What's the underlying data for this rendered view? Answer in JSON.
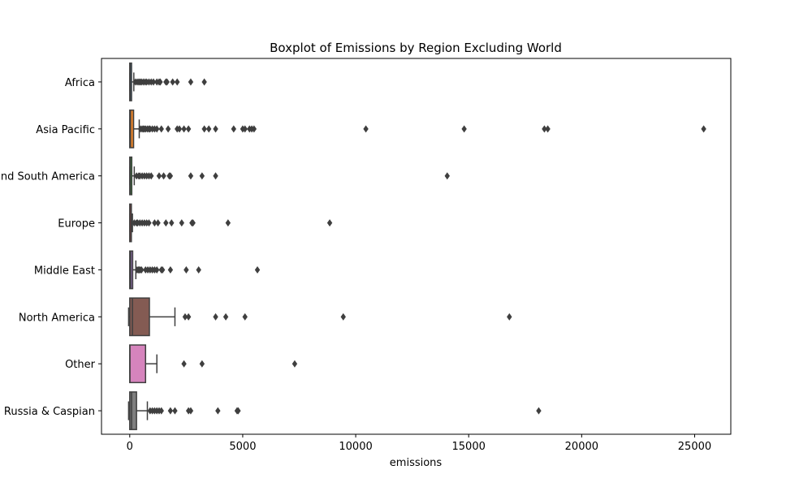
{
  "chart_data": {
    "type": "boxplot",
    "title": "Boxplot of Emissions by Region Excluding World",
    "xlabel": "emissions",
    "ylabel": "",
    "xlim": [
      -1250,
      26600
    ],
    "xticks": [
      0,
      5000,
      10000,
      15000,
      20000,
      25000
    ],
    "grid": false,
    "categories": [
      "Africa",
      "Asia Pacific",
      "Central and South America",
      "Europe",
      "Middle East",
      "North America",
      "Other",
      "Russia & Caspian"
    ],
    "boxes": [
      {
        "category": "Africa",
        "color": "#3274a1",
        "whisker_low": 0,
        "q1": 0,
        "median": 20,
        "q3": 80,
        "whisker_high": 180,
        "outliers": [
          250,
          330,
          400,
          460,
          520,
          600,
          680,
          750,
          850,
          950,
          1050,
          1200,
          1300,
          1350,
          1600,
          1650,
          1900,
          2100,
          2700,
          3300
        ]
      },
      {
        "category": "Asia Pacific",
        "color": "#e1812c",
        "whisker_low": 0,
        "q1": 0,
        "median": 30,
        "q3": 170,
        "whisker_high": 420,
        "outliers": [
          480,
          550,
          600,
          650,
          700,
          780,
          850,
          900,
          1000,
          1100,
          1200,
          1400,
          1700,
          2100,
          2200,
          2400,
          2600,
          3300,
          3500,
          3800,
          4600,
          5000,
          5100,
          5300,
          5400,
          5500,
          10450,
          14800,
          18350,
          18500,
          25400
        ]
      },
      {
        "category": "Central and South America",
        "color": "#3a923a",
        "whisker_low": 0,
        "q1": 0,
        "median": 20,
        "q3": 90,
        "whisker_high": 200,
        "outliers": [
          300,
          400,
          450,
          550,
          650,
          750,
          850,
          950,
          1300,
          1500,
          1750,
          1800,
          2700,
          3200,
          3800,
          14050
        ]
      },
      {
        "category": "Europe",
        "color": "#c03d3e",
        "whisker_low": 0,
        "q1": 0,
        "median": 10,
        "q3": 50,
        "whisker_high": 120,
        "outliers": [
          200,
          300,
          350,
          450,
          550,
          650,
          750,
          850,
          1100,
          1250,
          1600,
          1850,
          2300,
          2750,
          2800,
          4350,
          8850
        ]
      },
      {
        "category": "Middle East",
        "color": "#9372b2",
        "whisker_low": 0,
        "q1": 0,
        "median": 40,
        "q3": 130,
        "whisker_high": 270,
        "outliers": [
          330,
          380,
          420,
          470,
          520,
          700,
          800,
          900,
          1000,
          1100,
          1200,
          1400,
          1450,
          1800,
          2500,
          3050,
          5650
        ]
      },
      {
        "category": "North America",
        "color": "#845b53",
        "whisker_low": -50,
        "q1": 0,
        "median": 120,
        "q3": 870,
        "whisker_high": 2000,
        "outliers": [
          2450,
          2600,
          3800,
          4250,
          5100,
          9450,
          16800
        ]
      },
      {
        "category": "Other",
        "color": "#d684bd",
        "whisker_low": 0,
        "q1": 0,
        "median": 10,
        "q3": 700,
        "whisker_high": 1200,
        "outliers": [
          2400,
          3200,
          7300
        ]
      },
      {
        "category": "Russia & Caspian",
        "color": "#7f7f7f",
        "whisker_low": -50,
        "q1": 0,
        "median": 80,
        "q3": 300,
        "whisker_high": 780,
        "outliers": [
          900,
          1000,
          1100,
          1200,
          1300,
          1400,
          1800,
          2000,
          2600,
          2700,
          3900,
          4750,
          4800,
          18100
        ]
      }
    ]
  }
}
